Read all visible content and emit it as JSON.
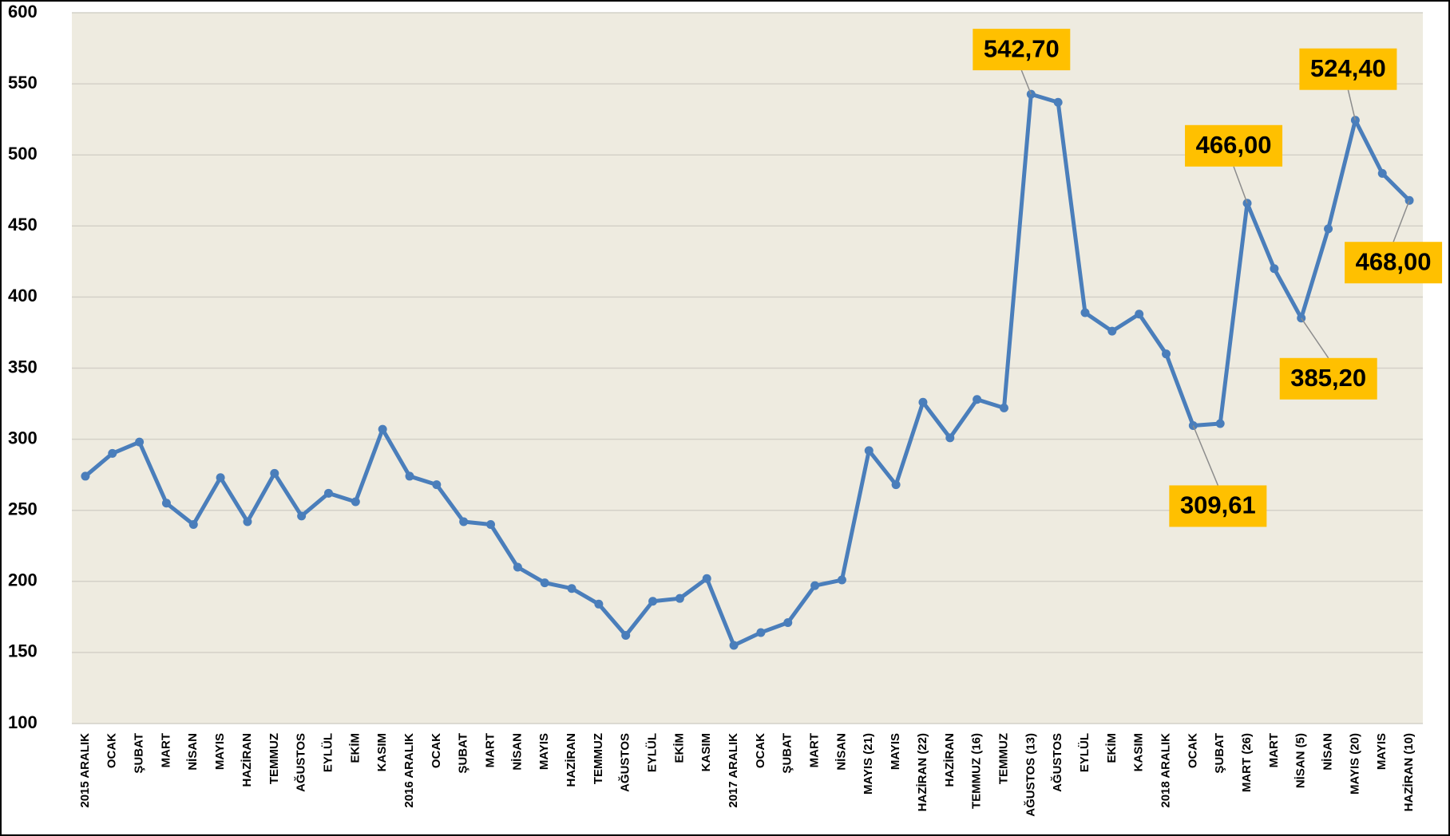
{
  "chart_data": {
    "type": "line",
    "categories": [
      "2015 ARALIK",
      "OCAK",
      "ŞUBAT",
      "MART",
      "NİSAN",
      "MAYIS",
      "HAZİRAN",
      "TEMMUZ",
      "AĞUSTOS",
      "EYLÜL",
      "EKİM",
      "KASIM",
      "2016 ARALIK",
      "OCAK",
      "ŞUBAT",
      "MART",
      "NİSAN",
      "MAYIS",
      "HAZİRAN",
      "TEMMUZ",
      "AĞUSTOS",
      "EYLÜL",
      "EKİM",
      "KASIM",
      "2017 ARALIK",
      "OCAK",
      "ŞUBAT",
      "MART",
      "NİSAN",
      "MAYIS (21)",
      "MAYIS",
      "HAZİRAN (22)",
      "HAZİRAN",
      "TEMMUZ (16)",
      "TEMMUZ",
      "AĞUSTOS (13)",
      "AĞUSTOS",
      "EYLÜL",
      "EKİM",
      "KASIM",
      "2018 ARALIK",
      "OCAK",
      "ŞUBAT",
      "MART (26)",
      "MART",
      "NİSAN (5)",
      "NİSAN",
      "MAYIS (20)",
      "MAYIS",
      "HAZİRAN (10)"
    ],
    "series": [
      {
        "color": "#4a7ebb",
        "values": [
          274,
          290,
          298,
          255,
          240,
          273,
          242,
          276,
          246,
          262,
          256,
          307,
          274,
          268,
          242,
          240,
          210,
          199,
          195,
          184,
          162,
          186,
          188,
          202,
          155,
          164,
          171,
          197,
          201,
          292,
          268,
          326,
          301,
          328,
          322,
          542.7,
          537,
          389,
          376,
          388,
          360,
          309.61,
          311,
          466.0,
          420,
          385.2,
          448,
          524.4,
          487,
          468.0
        ],
        "value_labels": [
          null,
          null,
          null,
          null,
          null,
          null,
          null,
          null,
          null,
          null,
          null,
          null,
          null,
          null,
          null,
          null,
          null,
          null,
          null,
          null,
          null,
          null,
          null,
          null,
          null,
          null,
          null,
          null,
          null,
          null,
          null,
          null,
          null,
          null,
          null,
          "542,70",
          null,
          null,
          null,
          null,
          null,
          "309,61",
          null,
          "466,00",
          null,
          "385,20",
          null,
          "524,40",
          null,
          "468,00"
        ]
      }
    ],
    "ylim": [
      100,
      600
    ],
    "yticks": [
      100,
      150,
      200,
      250,
      300,
      350,
      400,
      450,
      500,
      550,
      600
    ],
    "grid": true,
    "label_color": "#ffc000"
  }
}
